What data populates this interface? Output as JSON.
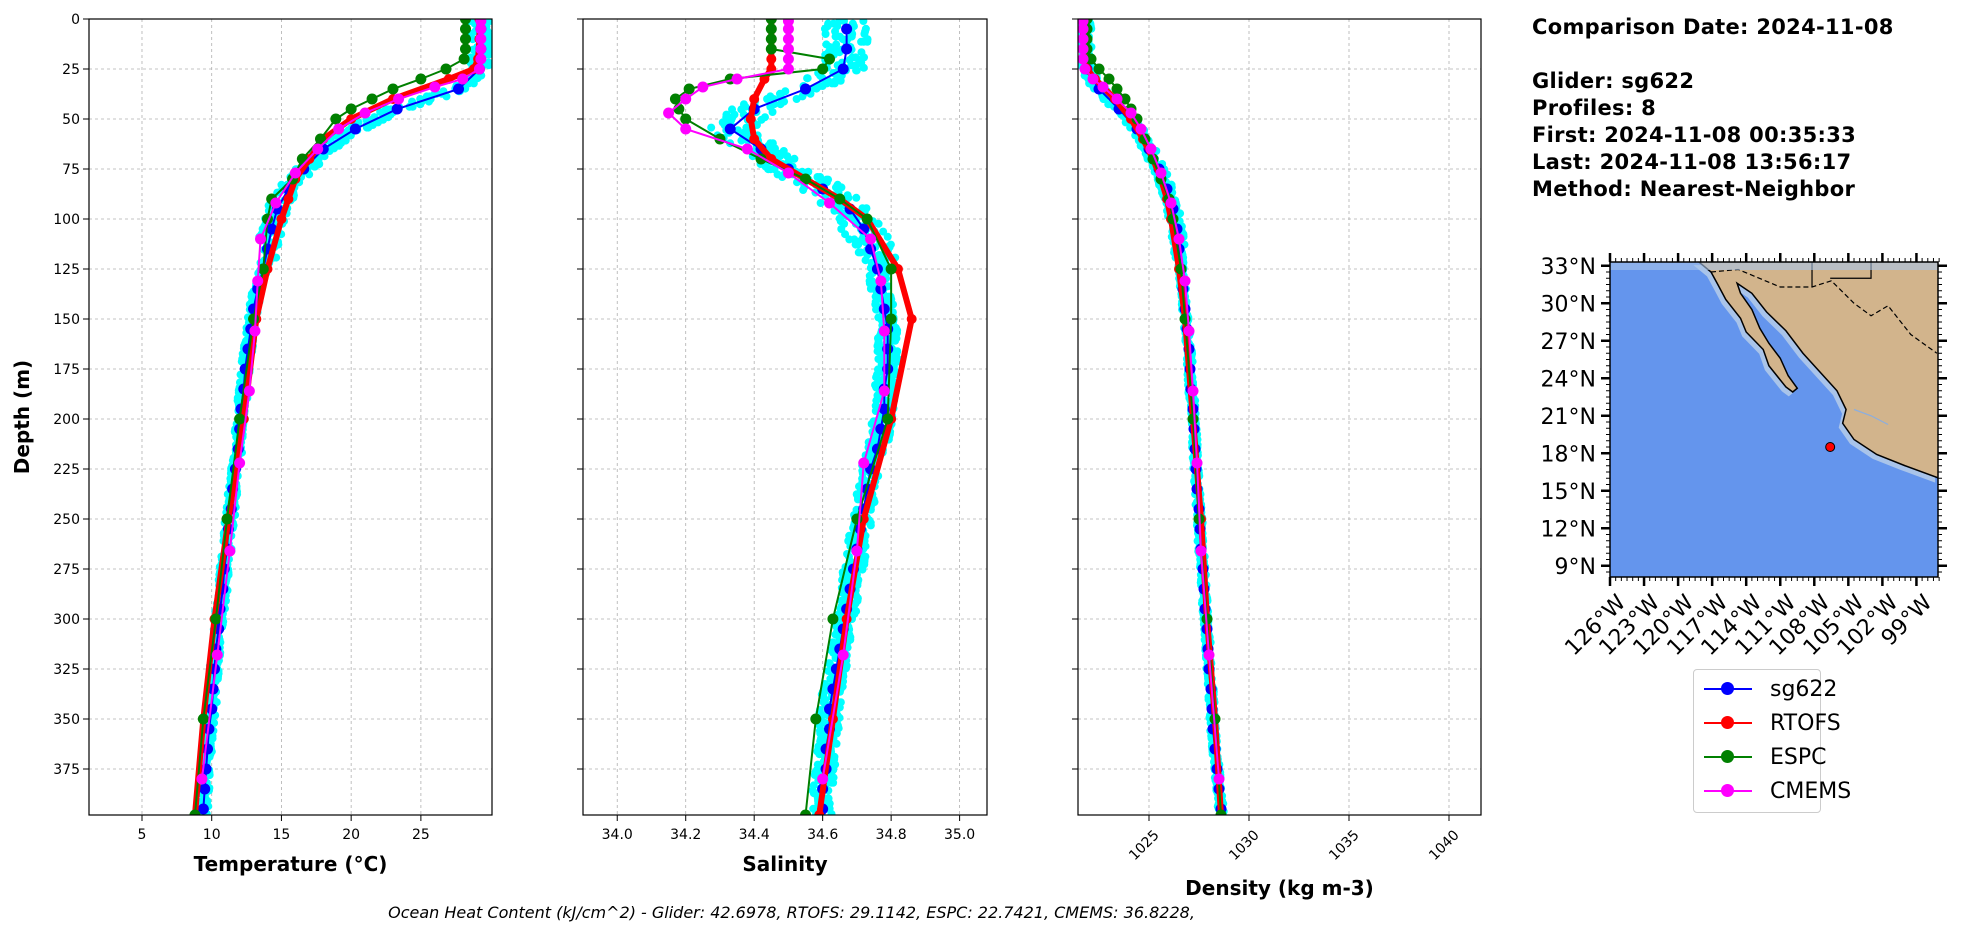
{
  "info": {
    "comparison_date": "Comparison Date: 2024-11-08",
    "glider": "Glider: sg622",
    "profiles": "Profiles: 8",
    "first": "First: 2024-11-08 00:35:33",
    "last": "Last: 2024-11-08 13:56:17",
    "method": "Method: Nearest-Neighbor"
  },
  "footer": "Ocean Heat Content (kJ/cm^2) - Glider: 42.6978,  RTOFS: 29.1142,  ESPC: 22.7421,  CMEMS: 36.8228,",
  "legend": [
    {
      "label": "sg622",
      "color": "#0000ff"
    },
    {
      "label": "RTOFS",
      "color": "#ff0000"
    },
    {
      "label": "ESPC",
      "color": "#008000"
    },
    {
      "label": "CMEMS",
      "color": "#ff00ff"
    }
  ],
  "colors": {
    "glider_scatter": "#00ffff",
    "ocean": "#6495ed",
    "shelf": "#a9c4ea",
    "land": "#d2b48c",
    "grid": "#b0b0b0"
  },
  "chart_data": [
    {
      "type": "line",
      "title": "",
      "xlabel": "Temperature (°C)",
      "ylabel": "Depth (m)",
      "xlim": [
        1.2,
        30.1
      ],
      "ylim": [
        398,
        0
      ],
      "xticks": [
        5,
        10,
        15,
        20,
        25
      ],
      "yticks": [
        0,
        25,
        50,
        75,
        100,
        125,
        150,
        175,
        200,
        225,
        250,
        275,
        300,
        325,
        350,
        375
      ],
      "ytick_labels": [
        "0",
        "25",
        "50",
        "75",
        "100",
        "125",
        "150",
        "175",
        "200",
        "225",
        "250",
        "275",
        "300",
        "325",
        "350",
        "375"
      ],
      "glider_spread": 0.35,
      "series": [
        {
          "name": "sg622",
          "depth": [
            5,
            15,
            25,
            35,
            45,
            55,
            65,
            75,
            85,
            95,
            105,
            115,
            125,
            135,
            145,
            155,
            165,
            175,
            185,
            195,
            205,
            215,
            225,
            235,
            245,
            255,
            265,
            275,
            285,
            295,
            305,
            315,
            325,
            335,
            345,
            355,
            365,
            375,
            385,
            395
          ],
          "values": [
            29.3,
            29.3,
            29.2,
            27.7,
            23.3,
            20.3,
            18.0,
            16.6,
            15.5,
            14.7,
            14.3,
            14.0,
            13.7,
            13.3,
            13.0,
            12.8,
            12.6,
            12.4,
            12.3,
            12.1,
            12.0,
            11.9,
            11.7,
            11.5,
            11.4,
            11.2,
            11.1,
            10.9,
            10.8,
            10.6,
            10.5,
            10.3,
            10.2,
            10.1,
            10.0,
            9.8,
            9.7,
            9.6,
            9.5,
            9.4
          ]
        },
        {
          "name": "RTOFS",
          "depth": [
            0,
            10,
            20,
            25,
            30,
            40,
            50,
            60,
            70,
            80,
            90,
            100,
            125,
            150,
            200,
            250,
            300,
            350,
            398
          ],
          "values": [
            29.2,
            29.2,
            29.1,
            28.8,
            27.0,
            23.0,
            20.0,
            18.0,
            17.0,
            16.0,
            15.5,
            15.0,
            14.0,
            13.2,
            12.3,
            11.2,
            10.2,
            9.4,
            8.8
          ]
        },
        {
          "name": "ESPC",
          "depth": [
            0,
            5,
            10,
            15,
            20,
            25,
            30,
            35,
            40,
            45,
            50,
            60,
            70,
            80,
            90,
            100,
            125,
            150,
            200,
            250,
            300,
            350,
            398
          ],
          "values": [
            28.2,
            28.2,
            28.2,
            28.2,
            28.1,
            26.8,
            25.0,
            23.0,
            21.5,
            20.0,
            18.9,
            17.8,
            16.5,
            15.8,
            14.3,
            14.0,
            13.7,
            13.0,
            12.0,
            11.1,
            10.3,
            9.4,
            8.8
          ]
        },
        {
          "name": "CMEMS",
          "depth": [
            1,
            5,
            10,
            15,
            20,
            25,
            30,
            34,
            40,
            47,
            55,
            65,
            77,
            92,
            110,
            131,
            156,
            186,
            222,
            266,
            318,
            380
          ],
          "values": [
            29.3,
            29.3,
            29.3,
            29.3,
            29.3,
            29.2,
            28.0,
            26.0,
            23.4,
            21.0,
            19.1,
            17.6,
            16.0,
            14.6,
            13.5,
            13.3,
            13.1,
            12.7,
            12.0,
            11.3,
            10.4,
            9.3
          ]
        }
      ]
    },
    {
      "type": "line",
      "title": "",
      "xlabel": "Salinity",
      "ylabel": "",
      "xlim": [
        33.9,
        35.08
      ],
      "ylim": [
        398,
        0
      ],
      "xticks": [
        34.0,
        34.2,
        34.4,
        34.6,
        34.8,
        35.0
      ],
      "xtick_labels": [
        "34.0",
        "34.2",
        "34.4",
        "34.6",
        "34.8",
        "35.0"
      ],
      "yticks": [
        0,
        25,
        50,
        75,
        100,
        125,
        150,
        175,
        200,
        225,
        250,
        275,
        300,
        325,
        350,
        375
      ],
      "glider_spread": 0.03,
      "series": [
        {
          "name": "sg622",
          "depth": [
            5,
            15,
            25,
            35,
            45,
            55,
            65,
            75,
            85,
            95,
            105,
            115,
            125,
            135,
            145,
            155,
            165,
            175,
            185,
            195,
            205,
            215,
            225,
            235,
            245,
            255,
            265,
            275,
            285,
            295,
            305,
            315,
            325,
            335,
            345,
            355,
            365,
            375,
            385,
            395
          ],
          "values": [
            34.67,
            34.67,
            34.66,
            34.55,
            34.4,
            34.33,
            34.42,
            34.5,
            34.6,
            34.68,
            34.72,
            34.74,
            34.76,
            34.77,
            34.78,
            34.79,
            34.79,
            34.79,
            34.78,
            34.78,
            34.77,
            34.76,
            34.74,
            34.73,
            34.72,
            34.71,
            34.7,
            34.69,
            34.68,
            34.67,
            34.66,
            34.65,
            34.64,
            34.63,
            34.62,
            34.62,
            34.61,
            34.61,
            34.6,
            34.6
          ]
        },
        {
          "name": "RTOFS",
          "depth": [
            0,
            10,
            20,
            25,
            30,
            40,
            50,
            60,
            70,
            80,
            90,
            100,
            125,
            150,
            200,
            250,
            300,
            350,
            398
          ],
          "values": [
            34.45,
            34.45,
            34.45,
            34.45,
            34.43,
            34.4,
            34.39,
            34.4,
            34.45,
            34.55,
            34.65,
            34.73,
            34.82,
            34.86,
            34.8,
            34.72,
            34.67,
            34.63,
            34.59
          ]
        },
        {
          "name": "ESPC",
          "depth": [
            0,
            5,
            10,
            15,
            20,
            25,
            30,
            35,
            40,
            45,
            50,
            60,
            70,
            80,
            90,
            100,
            125,
            150,
            200,
            250,
            300,
            350,
            398
          ],
          "values": [
            34.45,
            34.45,
            34.45,
            34.45,
            34.62,
            34.6,
            34.33,
            34.21,
            34.17,
            34.18,
            34.2,
            34.3,
            34.42,
            34.55,
            34.65,
            34.73,
            34.8,
            34.8,
            34.79,
            34.7,
            34.63,
            34.58,
            34.55
          ]
        },
        {
          "name": "CMEMS",
          "depth": [
            1,
            5,
            10,
            15,
            20,
            25,
            30,
            34,
            40,
            47,
            55,
            65,
            77,
            92,
            110,
            131,
            156,
            186,
            222,
            266,
            318,
            380
          ],
          "values": [
            34.5,
            34.5,
            34.5,
            34.5,
            34.5,
            34.5,
            34.35,
            34.25,
            34.2,
            34.15,
            34.2,
            34.38,
            34.5,
            34.62,
            34.74,
            34.77,
            34.78,
            34.78,
            34.72,
            34.7,
            34.66,
            34.6
          ]
        }
      ]
    },
    {
      "type": "line",
      "title": "",
      "xlabel": "Density (kg m-3)",
      "ylabel": "",
      "xlim": [
        1021.45,
        1041.6
      ],
      "ylim": [
        398,
        0
      ],
      "xticks": [
        1025,
        1030,
        1035,
        1040
      ],
      "xtick_labels": [
        "1025",
        "1030",
        "1035",
        "1040"
      ],
      "yticks": [
        0,
        25,
        50,
        75,
        100,
        125,
        150,
        175,
        200,
        225,
        250,
        275,
        300,
        325,
        350,
        375
      ],
      "glider_spread": 0.15,
      "series": [
        {
          "name": "sg622",
          "depth": [
            5,
            15,
            25,
            35,
            45,
            55,
            65,
            75,
            85,
            95,
            105,
            115,
            125,
            135,
            145,
            155,
            165,
            175,
            185,
            195,
            205,
            215,
            225,
            235,
            245,
            255,
            265,
            275,
            285,
            295,
            305,
            315,
            325,
            335,
            345,
            355,
            365,
            375,
            385,
            395
          ],
          "values": [
            1021.8,
            1021.8,
            1021.9,
            1022.5,
            1023.5,
            1024.4,
            1025.0,
            1025.5,
            1025.9,
            1026.2,
            1026.4,
            1026.5,
            1026.6,
            1026.7,
            1026.8,
            1026.9,
            1027.0,
            1027.05,
            1027.1,
            1027.2,
            1027.25,
            1027.3,
            1027.35,
            1027.4,
            1027.5,
            1027.55,
            1027.6,
            1027.7,
            1027.75,
            1027.8,
            1027.9,
            1027.95,
            1028.0,
            1028.1,
            1028.15,
            1028.2,
            1028.3,
            1028.4,
            1028.5,
            1028.6
          ]
        },
        {
          "name": "RTOFS",
          "depth": [
            0,
            10,
            20,
            25,
            30,
            40,
            50,
            60,
            70,
            80,
            90,
            100,
            125,
            150,
            200,
            250,
            300,
            350,
            398
          ],
          "values": [
            1021.7,
            1021.7,
            1021.8,
            1021.9,
            1022.3,
            1023.3,
            1024.1,
            1024.7,
            1025.2,
            1025.6,
            1025.9,
            1026.1,
            1026.5,
            1026.8,
            1027.2,
            1027.6,
            1027.9,
            1028.3,
            1028.6
          ]
        },
        {
          "name": "ESPC",
          "depth": [
            0,
            5,
            10,
            15,
            20,
            25,
            30,
            35,
            40,
            45,
            50,
            60,
            70,
            80,
            90,
            100,
            125,
            150,
            200,
            250,
            300,
            350,
            398
          ],
          "values": [
            1021.9,
            1021.9,
            1021.9,
            1021.9,
            1022.1,
            1022.5,
            1023.0,
            1023.4,
            1023.8,
            1024.1,
            1024.4,
            1024.8,
            1025.2,
            1025.6,
            1026.0,
            1026.2,
            1026.6,
            1026.8,
            1027.2,
            1027.5,
            1027.9,
            1028.3,
            1028.6
          ]
        },
        {
          "name": "CMEMS",
          "depth": [
            1,
            5,
            10,
            15,
            20,
            25,
            30,
            34,
            40,
            47,
            55,
            65,
            77,
            92,
            110,
            131,
            156,
            186,
            222,
            266,
            318,
            380
          ],
          "values": [
            1021.7,
            1021.7,
            1021.7,
            1021.7,
            1021.7,
            1021.8,
            1022.2,
            1022.7,
            1023.4,
            1024.1,
            1024.6,
            1025.1,
            1025.6,
            1026.1,
            1026.5,
            1026.8,
            1027.0,
            1027.2,
            1027.4,
            1027.6,
            1028.0,
            1028.5
          ]
        }
      ]
    },
    {
      "type": "map",
      "lon_range": [
        -126,
        -97.1
      ],
      "lat_range": [
        8.1,
        33.3
      ],
      "lon_ticks": [
        -126,
        -123,
        -120,
        -117,
        -114,
        -111,
        -108,
        -105,
        -102,
        -99
      ],
      "lon_tick_labels": [
        "126°W",
        "123°W",
        "120°W",
        "117°W",
        "114°W",
        "111°W",
        "108°W",
        "105°W",
        "102°W",
        "99°W"
      ],
      "lat_ticks": [
        33,
        30,
        27,
        24,
        21,
        18,
        15,
        12,
        9
      ],
      "lat_tick_labels": [
        "33°N",
        "30°N",
        "27°N",
        "24°N",
        "21°N",
        "18°N",
        "15°N",
        "12°N",
        "9°N"
      ],
      "glider_location": {
        "lon": -106.6,
        "lat": 18.5
      }
    }
  ]
}
